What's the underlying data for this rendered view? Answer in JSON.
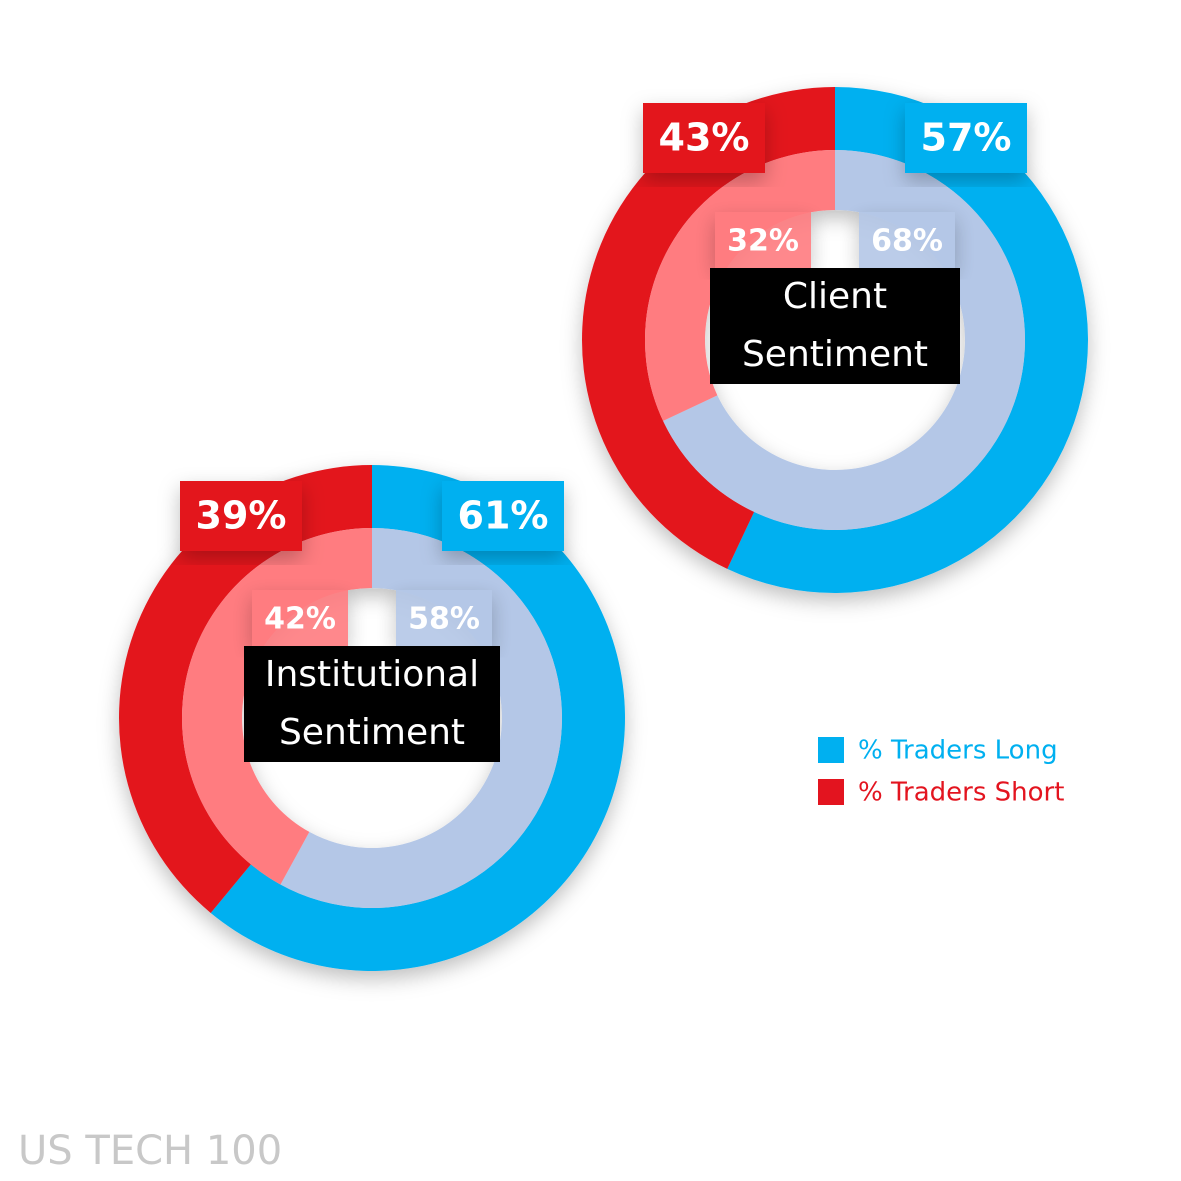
{
  "chart_data": [
    {
      "type": "donut",
      "title": "Client Sentiment",
      "rings": [
        {
          "values": [
            57,
            43
          ],
          "value_labels": [
            "57%",
            "43%"
          ],
          "colors": [
            "#00b0f0",
            "#e3141f"
          ]
        },
        {
          "values": [
            68,
            32
          ],
          "value_labels": [
            "68%",
            "32%"
          ],
          "colors": [
            "#b4c7e7",
            "#ff7c80"
          ]
        }
      ]
    },
    {
      "type": "donut",
      "title": "Institutional Sentiment",
      "rings": [
        {
          "values": [
            61,
            39
          ],
          "value_labels": [
            "61%",
            "39%"
          ],
          "colors": [
            "#00b0f0",
            "#e3141f"
          ]
        },
        {
          "values": [
            58,
            42
          ],
          "value_labels": [
            "58%",
            "42%"
          ],
          "colors": [
            "#b4c7e7",
            "#ff7c80"
          ]
        }
      ]
    }
  ],
  "legend": {
    "position": "right",
    "items": [
      {
        "name": "% Traders Long",
        "color": "#00b0f0"
      },
      {
        "name": "% Traders Short",
        "color": "#e3141f"
      }
    ]
  },
  "footer": "US TECH 100"
}
